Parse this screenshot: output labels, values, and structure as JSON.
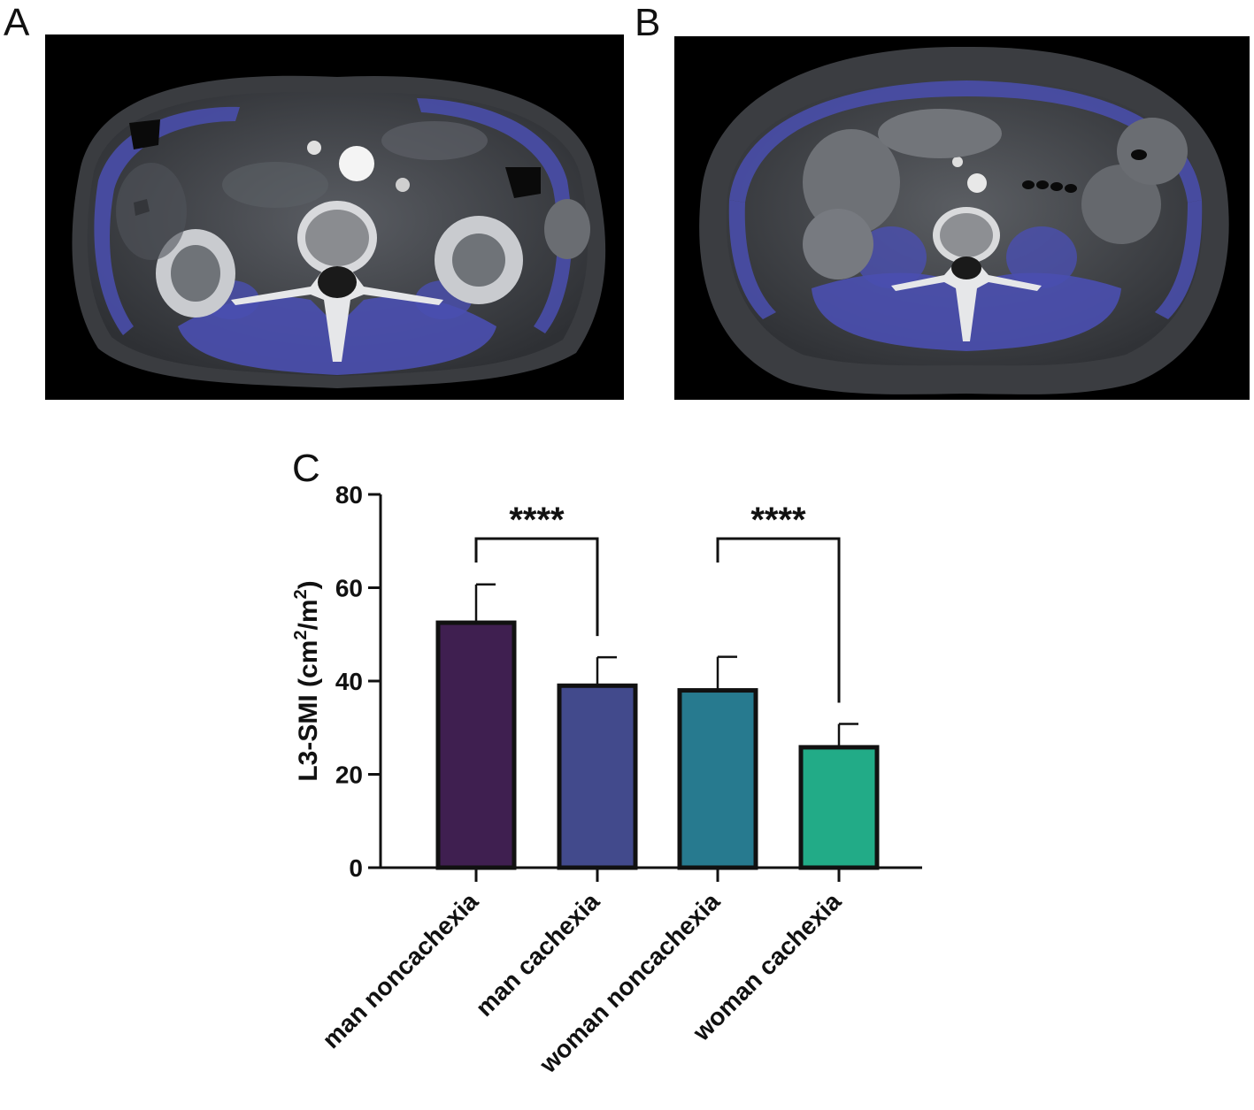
{
  "panels": {
    "a_label": "A",
    "b_label": "B",
    "c_label": "C"
  },
  "images": {
    "a": "ct-scan-l3-muscle-overlay",
    "b": "ct-scan-l3-muscle-overlay"
  },
  "colors": {
    "muscle_overlay": "#4a4fb0",
    "bars": [
      "#3f1f50",
      "#424a8c",
      "#277a8f",
      "#22ab87"
    ]
  },
  "chart_data": {
    "type": "bar",
    "categories": [
      "man noncachexia",
      "man cachexia",
      "woman noncachexia",
      "woman cachexia"
    ],
    "values": [
      52.5,
      39,
      38,
      25.8
    ],
    "errors": [
      8.2,
      6.1,
      7.2,
      5.0
    ],
    "ylabel_main": "L3-SMI (cm",
    "ylabel_sup1": "2",
    "ylabel_mid": "/m",
    "ylabel_sup2": "2",
    "ylabel_end": ")",
    "ylim": [
      0,
      80
    ],
    "yticks": [
      0,
      20,
      40,
      60,
      80
    ],
    "significance": [
      {
        "between": [
          0,
          1
        ],
        "label": "****"
      },
      {
        "between": [
          2,
          3
        ],
        "label": "****"
      }
    ]
  }
}
